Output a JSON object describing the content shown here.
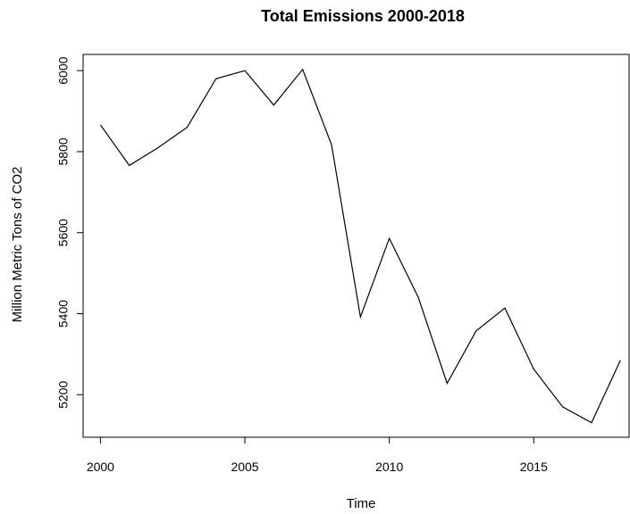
{
  "chart_data": {
    "type": "line",
    "title": "Total Emissions 2000-2018",
    "xlabel": "Time",
    "ylabel": "Million Metric Tons of CO2",
    "xlim": [
      1999.4,
      2018.3
    ],
    "ylim": [
      5095,
      6040
    ],
    "x_ticks": [
      2000,
      2005,
      2010,
      2015
    ],
    "y_ticks": [
      5200,
      5400,
      5600,
      5800,
      6000
    ],
    "grid": false,
    "series": [
      {
        "x": [
          2000,
          2001,
          2002,
          2003,
          2004,
          2005,
          2006,
          2007,
          2008,
          2009,
          2010,
          2011,
          2012,
          2013,
          2014,
          2015,
          2016,
          2017,
          2018
        ],
        "values": [
          5866,
          5766,
          5810,
          5860,
          5980,
          6000,
          5915,
          6003,
          5817,
          5392,
          5586,
          5441,
          5228,
          5357,
          5414,
          5263,
          5170,
          5131,
          5285
        ],
        "color": "#000000"
      }
    ]
  }
}
